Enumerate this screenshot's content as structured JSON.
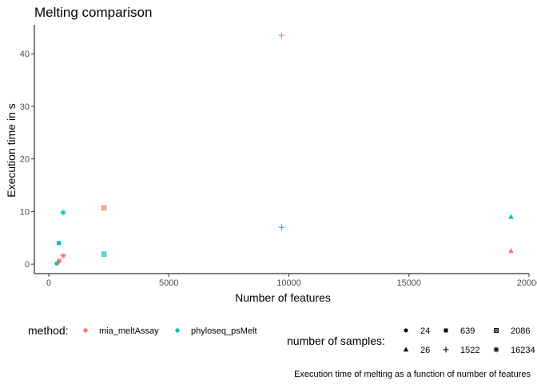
{
  "chart_data": {
    "type": "scatter",
    "title": "Melting comparison",
    "xlabel": "Number of features",
    "ylabel": "Execution time in s",
    "caption": "Execution time of melting as a function of number of features",
    "xlim": [
      -600,
      20000
    ],
    "ylim": [
      -1.8,
      45.5
    ],
    "x_ticks": [
      0,
      5000,
      10000,
      15000,
      20000
    ],
    "x_tick_labels": [
      "0",
      "5000",
      "10000",
      "15000",
      "20000"
    ],
    "y_ticks": [
      0,
      10,
      20,
      30,
      40
    ],
    "y_tick_labels": [
      "0",
      "10",
      "20",
      "30",
      "40"
    ],
    "grid": false,
    "legend_position": "bottom",
    "color_legend": {
      "title": "method:",
      "entries": [
        {
          "label": "mia_meltAssay",
          "color": "#F8766D"
        },
        {
          "label": "phyloseq_psMelt",
          "color": "#00BFC4"
        }
      ]
    },
    "shape_legend": {
      "title": "number of samples:",
      "entries": [
        {
          "label": "24",
          "shape": "circle"
        },
        {
          "label": "639",
          "shape": "square"
        },
        {
          "label": "2086",
          "shape": "square-cross"
        },
        {
          "label": "26",
          "shape": "triangle"
        },
        {
          "label": "1522",
          "shape": "plus"
        },
        {
          "label": "16234",
          "shape": "asterisk"
        }
      ]
    },
    "series": [
      {
        "name": "mia_meltAssay",
        "color": "#F8766D",
        "points": [
          {
            "x": 360,
            "y": 0.2,
            "samples": "24",
            "shape": "circle"
          },
          {
            "x": 430,
            "y": 0.6,
            "samples": "639",
            "shape": "square"
          },
          {
            "x": 2300,
            "y": 10.7,
            "samples": "2086",
            "shape": "square-cross"
          },
          {
            "x": 19250,
            "y": 2.5,
            "samples": "26",
            "shape": "triangle"
          },
          {
            "x": 9700,
            "y": 43.5,
            "samples": "1522",
            "shape": "plus"
          },
          {
            "x": 600,
            "y": 1.6,
            "samples": "16234",
            "shape": "asterisk"
          }
        ]
      },
      {
        "name": "phyloseq_psMelt",
        "color": "#00BFC4",
        "points": [
          {
            "x": 330,
            "y": 0.15,
            "samples": "24",
            "shape": "circle"
          },
          {
            "x": 420,
            "y": 4.0,
            "samples": "639",
            "shape": "square"
          },
          {
            "x": 2300,
            "y": 1.9,
            "samples": "2086",
            "shape": "square-cross"
          },
          {
            "x": 19250,
            "y": 9.0,
            "samples": "26",
            "shape": "triangle"
          },
          {
            "x": 9700,
            "y": 7.0,
            "samples": "1522",
            "shape": "plus"
          },
          {
            "x": 600,
            "y": 9.8,
            "samples": "16234",
            "shape": "asterisk"
          }
        ]
      }
    ]
  }
}
